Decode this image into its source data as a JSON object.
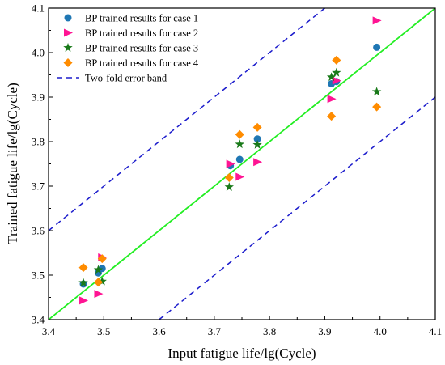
{
  "chart_data": {
    "type": "scatter",
    "title": "",
    "xlabel": "Input fatigue life/lg(Cycle)",
    "ylabel": "Trained fatigue life/lg(Cycle)",
    "xlim": [
      3.4,
      4.1
    ],
    "ylim": [
      3.4,
      4.1
    ],
    "x_ticks": [
      "3.4",
      "3.5",
      "3.6",
      "3.7",
      "3.8",
      "3.9",
      "4.0",
      "4.1"
    ],
    "y_ticks": [
      "3.4",
      "3.5",
      "3.6",
      "3.7",
      "3.8",
      "3.9",
      "4.0",
      "4.1"
    ],
    "grid": false,
    "legend_position": "top-left",
    "series": [
      {
        "name": "BP trained results for case 1",
        "marker": "circle",
        "color": "#1f77b4",
        "points": [
          [
            3.463,
            3.48
          ],
          [
            3.49,
            3.505
          ],
          [
            3.497,
            3.515
          ],
          [
            3.729,
            3.746
          ],
          [
            3.746,
            3.76
          ],
          [
            3.778,
            3.806
          ],
          [
            3.912,
            3.93
          ],
          [
            3.921,
            3.935
          ],
          [
            3.994,
            4.012
          ]
        ]
      },
      {
        "name": "BP trained results for case 2",
        "marker": "triangle-right",
        "color": "#ff1493",
        "points": [
          [
            3.463,
            3.443
          ],
          [
            3.49,
            3.458
          ],
          [
            3.497,
            3.54
          ],
          [
            3.729,
            3.75
          ],
          [
            3.746,
            3.721
          ],
          [
            3.778,
            3.754
          ],
          [
            3.912,
            3.896
          ],
          [
            3.921,
            3.937
          ],
          [
            3.994,
            4.072
          ]
        ]
      },
      {
        "name": "BP trained results for case 3",
        "marker": "star",
        "color": "#1a7a1a",
        "points": [
          [
            3.463,
            3.483
          ],
          [
            3.49,
            3.512
          ],
          [
            3.497,
            3.486
          ],
          [
            3.727,
            3.698
          ],
          [
            3.746,
            3.794
          ],
          [
            3.778,
            3.793
          ],
          [
            3.912,
            3.945
          ],
          [
            3.921,
            3.955
          ],
          [
            3.994,
            3.912
          ]
        ]
      },
      {
        "name": "BP trained results for case 4",
        "marker": "diamond",
        "color": "#ff8c00",
        "points": [
          [
            3.463,
            3.517
          ],
          [
            3.49,
            3.484
          ],
          [
            3.497,
            3.537
          ],
          [
            3.727,
            3.719
          ],
          [
            3.746,
            3.816
          ],
          [
            3.778,
            3.832
          ],
          [
            3.912,
            3.857
          ],
          [
            3.921,
            3.983
          ],
          [
            3.994,
            3.878
          ]
        ]
      }
    ],
    "reference_lines": [
      {
        "name": "",
        "style": "solid",
        "color": "#22ee22",
        "x": [
          3.4,
          4.1
        ],
        "y": [
          3.4,
          4.1
        ]
      },
      {
        "name": "Two-fold error band",
        "style": "dashed",
        "color": "#1c1ccc",
        "x": [
          3.4,
          3.9
        ],
        "y": [
          3.6,
          4.1
        ]
      },
      {
        "name": "",
        "style": "dashed",
        "color": "#1c1ccc",
        "x": [
          3.6,
          4.1
        ],
        "y": [
          3.4,
          3.9
        ]
      }
    ]
  }
}
